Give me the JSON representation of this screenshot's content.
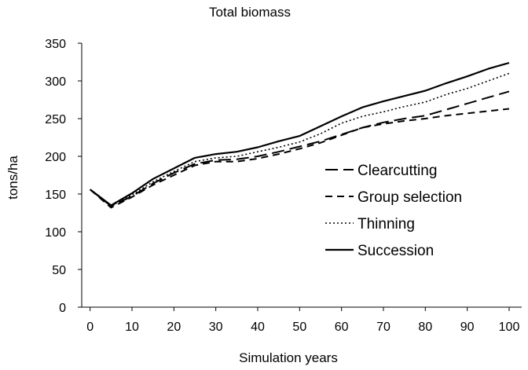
{
  "chart_data": {
    "type": "line",
    "title": "Total biomass",
    "xlabel": "Simulation years",
    "ylabel": "tons/ha",
    "x": [
      0,
      5,
      10,
      15,
      20,
      25,
      30,
      35,
      40,
      45,
      50,
      55,
      60,
      65,
      70,
      75,
      80,
      85,
      90,
      95,
      100
    ],
    "xticks": [
      0,
      10,
      20,
      30,
      40,
      50,
      60,
      70,
      80,
      90,
      100
    ],
    "yticks": [
      0,
      50,
      100,
      150,
      200,
      250,
      300,
      350
    ],
    "xlim": [
      -2,
      103
    ],
    "ylim": [
      0,
      350
    ],
    "grid": false,
    "legend_position": "center-right",
    "series": [
      {
        "name": "Clearcutting",
        "style": "long-dash",
        "values": [
          156,
          134,
          147,
          164,
          178,
          190,
          195,
          196,
          200,
          206,
          213,
          220,
          229,
          238,
          245,
          250,
          254,
          262,
          270,
          278,
          286
        ]
      },
      {
        "name": "Group selection",
        "style": "short-dash",
        "values": [
          156,
          132,
          146,
          162,
          175,
          188,
          193,
          193,
          197,
          203,
          210,
          218,
          228,
          238,
          243,
          247,
          250,
          254,
          257,
          260,
          263
        ]
      },
      {
        "name": "Thinning",
        "style": "dotted",
        "values": [
          156,
          134,
          149,
          166,
          180,
          193,
          198,
          200,
          206,
          212,
          219,
          230,
          244,
          253,
          259,
          266,
          272,
          282,
          290,
          300,
          310
        ]
      },
      {
        "name": "Succession",
        "style": "solid",
        "values": [
          156,
          135,
          151,
          170,
          184,
          198,
          203,
          206,
          212,
          220,
          227,
          240,
          253,
          265,
          273,
          280,
          287,
          297,
          306,
          316,
          324
        ]
      }
    ]
  }
}
